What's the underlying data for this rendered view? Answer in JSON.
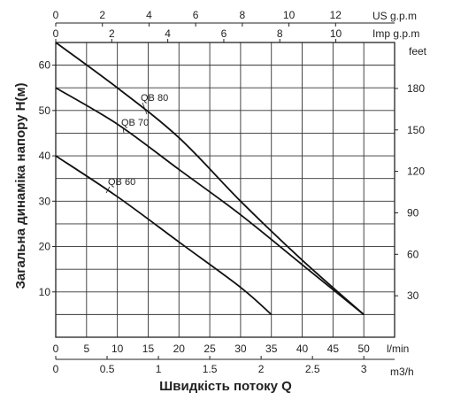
{
  "chart_data": {
    "type": "line",
    "xlabel": "Швидкість потоку Q",
    "ylabel": "Загальна динаміка напору H(м)",
    "x_unit": "l/min",
    "y_unit_right": "feet",
    "xlim": [
      0,
      55
    ],
    "ylim": [
      0,
      65
    ],
    "grid": true,
    "x_ticks": [
      0,
      5,
      10,
      15,
      20,
      25,
      30,
      35,
      40,
      45,
      50
    ],
    "y_ticks": [
      10,
      20,
      30,
      40,
      50,
      60
    ],
    "secondary_axes": {
      "us_gpm": {
        "label": "US g.p.m",
        "ticks": [
          0,
          2,
          4,
          6,
          8,
          10,
          12
        ],
        "lpm_per_unit": 3.785
      },
      "imp_gpm": {
        "label": "Imp g.p.m",
        "ticks": [
          0,
          2,
          4,
          6,
          8,
          10
        ],
        "lpm_per_unit": 4.546
      },
      "m3h": {
        "label": "m3/h",
        "ticks": [
          "0",
          "0.5",
          "1",
          "1.5",
          "2",
          "2.5",
          "3"
        ],
        "lpm_per_unit": 16.667
      },
      "feet": {
        "label": "feet",
        "ticks": [
          30,
          60,
          90,
          120,
          150,
          180
        ],
        "m_per_unit": 0.3048
      }
    },
    "series": [
      {
        "name": "QB 80",
        "x": [
          0,
          10,
          20,
          30,
          40,
          50
        ],
        "y": [
          65,
          55,
          44,
          30,
          17,
          5
        ]
      },
      {
        "name": "QB 70",
        "x": [
          0,
          10,
          20,
          30,
          40,
          50
        ],
        "y": [
          55,
          47,
          37,
          27,
          16,
          5
        ]
      },
      {
        "name": "QB 60",
        "x": [
          0,
          10,
          20,
          30,
          35
        ],
        "y": [
          40,
          31,
          21,
          11,
          5
        ]
      }
    ]
  }
}
